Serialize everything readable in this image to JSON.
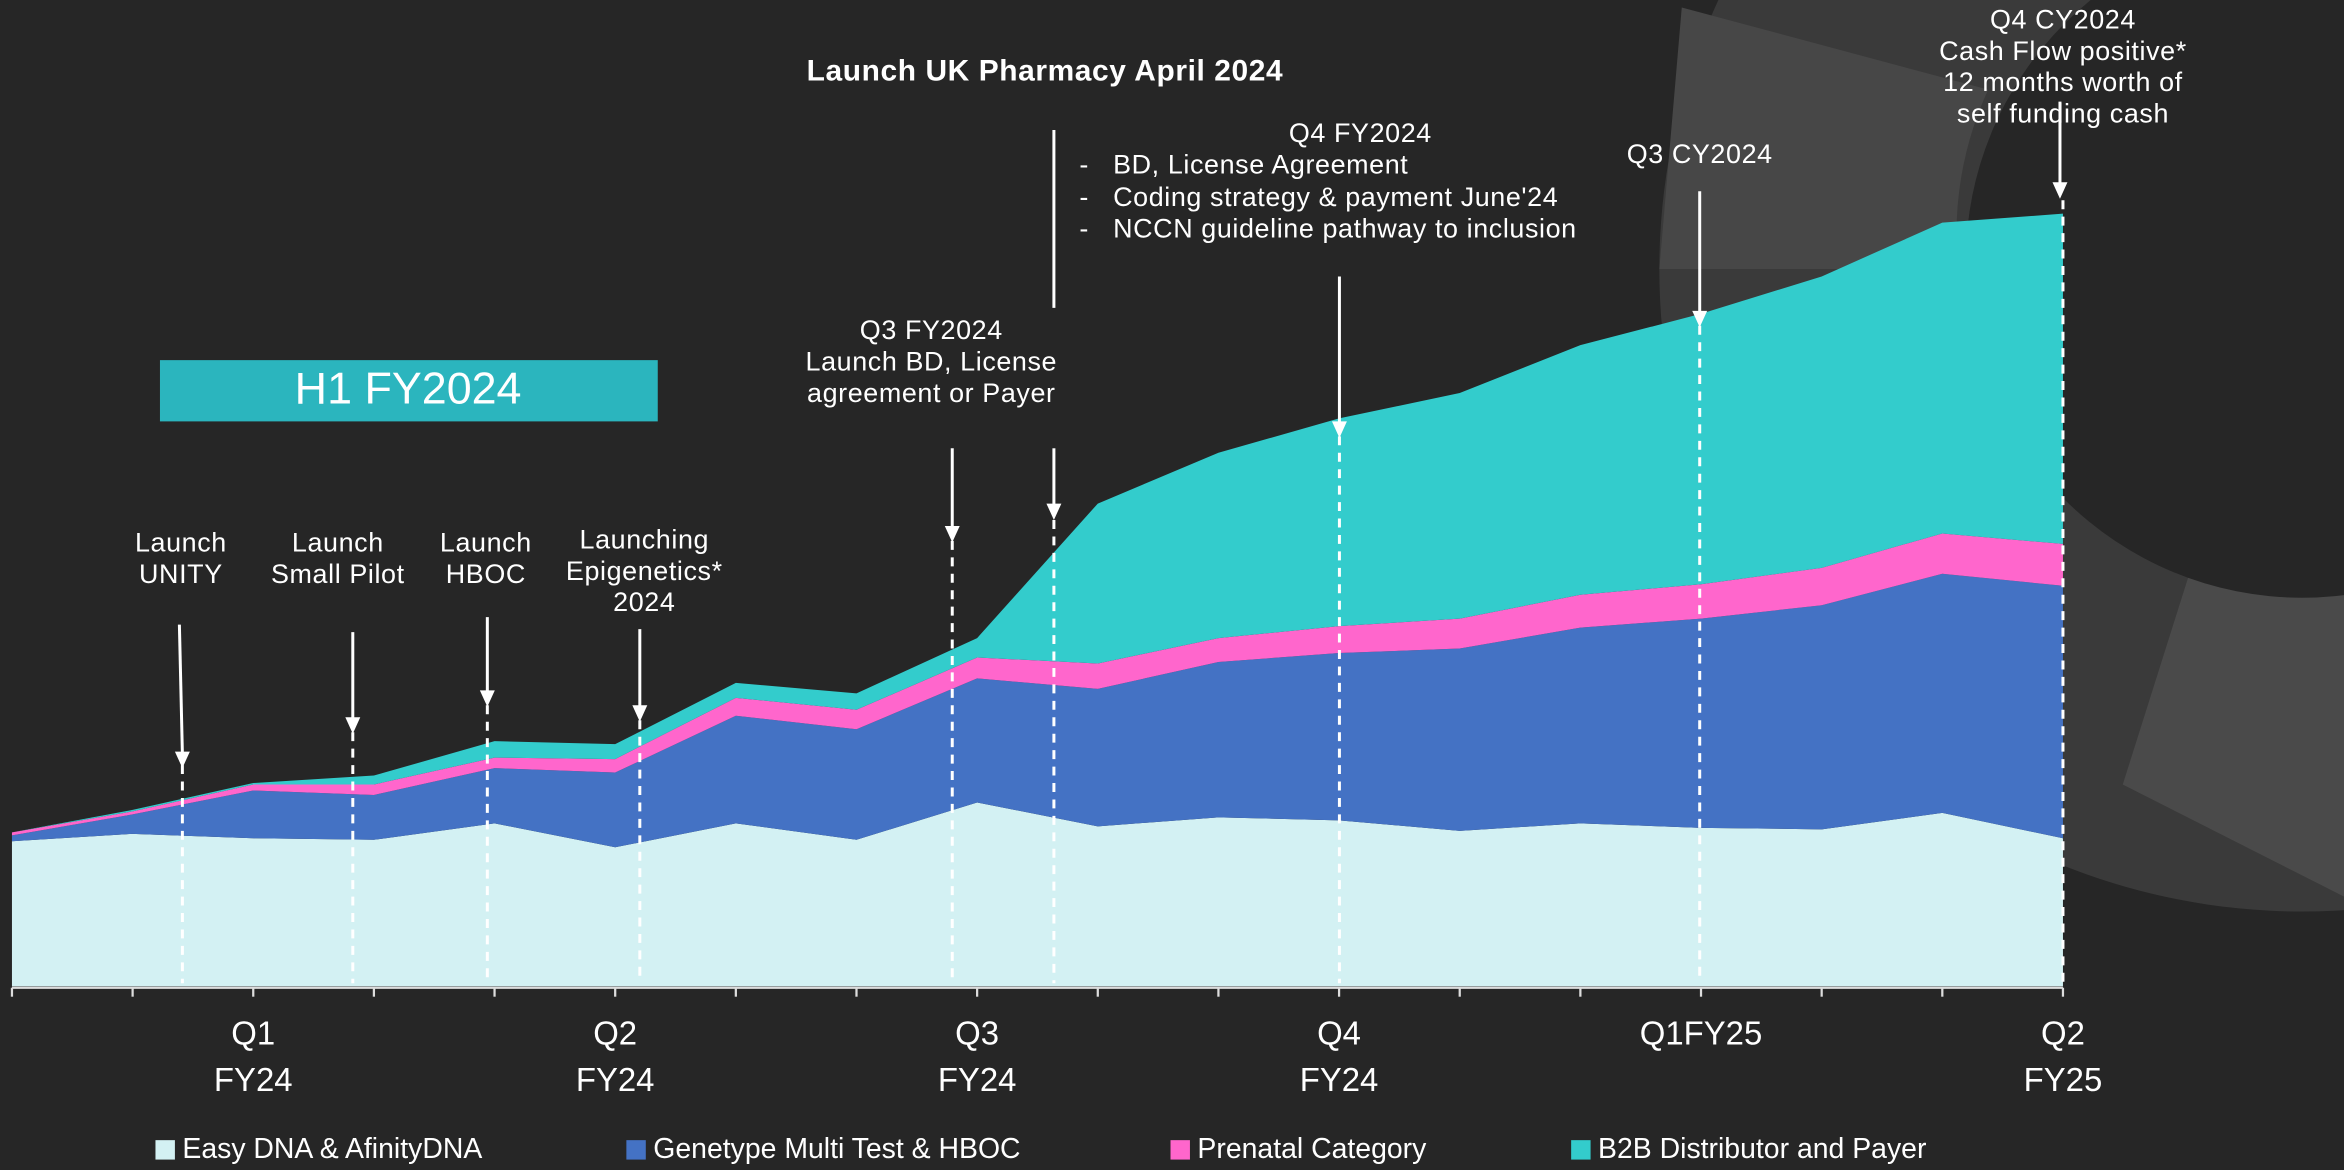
{
  "chart_data": {
    "type": "stacked_area",
    "categories": [
      null,
      null,
      "Q1\nFY24",
      null,
      null,
      "Q2\nFY24",
      null,
      null,
      "Q3\nFY24",
      null,
      null,
      "Q4\nFY24",
      null,
      null,
      "Q1FY25",
      null,
      null,
      "Q2\nFY25"
    ],
    "series": [
      {
        "name": "Easy DNA & AfinityDNA",
        "color": "#d3f1f3",
        "values": [
          97,
          102,
          99,
          98,
          109,
          93,
          109,
          98,
          123,
          107,
          113,
          111,
          104,
          109,
          106,
          105,
          116,
          99
        ]
      },
      {
        "name": "Genetype Multi Test & HBOC",
        "color": "#4472c4",
        "values": [
          4,
          13,
          32,
          30,
          37,
          50,
          72,
          74,
          83,
          92,
          104,
          112,
          122,
          131,
          140,
          150,
          160,
          169
        ]
      },
      {
        "name": "Prenatal Category",
        "color": "#ff66cc",
        "values": [
          2,
          2,
          4,
          7,
          7,
          9,
          12,
          13,
          14,
          17,
          16,
          18,
          20,
          22,
          23,
          25,
          27,
          28
        ]
      },
      {
        "name": "B2B Distributor and Payer",
        "color": "#33cccc",
        "values": [
          0,
          1,
          1,
          6,
          11,
          10,
          10,
          11,
          13,
          107,
          124,
          139,
          151,
          167,
          181,
          195,
          208,
          221
        ]
      }
    ],
    "ylim": [
      0,
      520
    ],
    "badge": "H1 FY2024",
    "headline": "Launch UK Pharmacy April 2024",
    "bullets": [
      "-   BD, License Agreement",
      "-   Coding strategy & payment June'24",
      "-   NCCN guideline pathway to inclusion"
    ],
    "annotations": [
      "Launch\nUNITY",
      "Launch\nSmall Pilot",
      "Launch\nHBOC",
      "Launching\nEpigenetics*\n2024",
      "Q3 FY2024\nLaunch BD, License\nagreement or Payer",
      "Q4 FY2024",
      "Q3 CY2024",
      "Q4 CY2024\nCash Flow positive*\n12 months worth of self funding cash"
    ]
  }
}
